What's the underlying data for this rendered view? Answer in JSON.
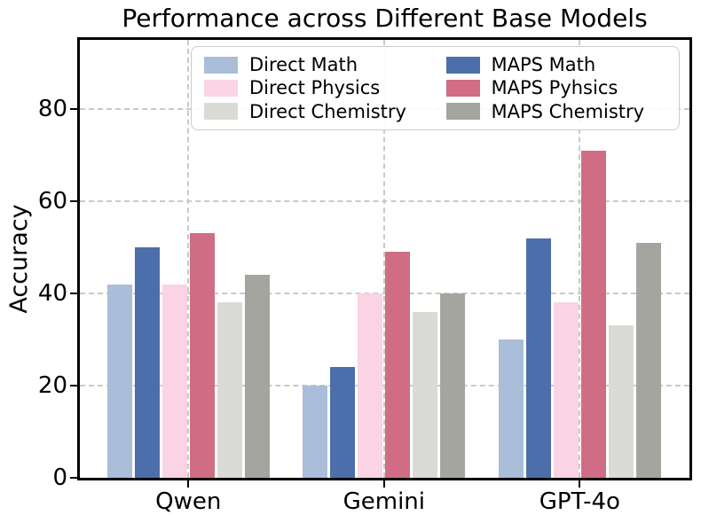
{
  "chart_data": {
    "type": "bar",
    "title": "Performance across Different Base Models",
    "ylabel": "Accuracy",
    "xlabel": "",
    "categories": [
      "Qwen",
      "Gemini",
      "GPT-4o"
    ],
    "series": [
      {
        "name": "Direct Math",
        "color": "#aabdd9",
        "values": [
          42,
          20,
          30
        ]
      },
      {
        "name": "MAPS Math",
        "color": "#4c6fab",
        "values": [
          50,
          24,
          52
        ]
      },
      {
        "name": "Direct Physics",
        "color": "#fad4e4",
        "values": [
          42,
          40,
          38
        ]
      },
      {
        "name": "MAPS Pyhsics",
        "color": "#d06d84",
        "values": [
          53,
          49,
          71
        ]
      },
      {
        "name": "Direct Chemistry",
        "color": "#dadad7",
        "values": [
          38,
          36,
          33
        ]
      },
      {
        "name": "MAPS Chemistry",
        "color": "#a5a5a0",
        "values": [
          44,
          40,
          51
        ]
      }
    ],
    "yticks": [
      0,
      20,
      40,
      60,
      80
    ],
    "ylim": [
      0,
      95
    ],
    "grid": true,
    "grid_style": "dashed",
    "legend_position": "upper center",
    "legend_columns": 2,
    "spine_color": "#000000",
    "gridline_color": "#c9c9c9"
  }
}
